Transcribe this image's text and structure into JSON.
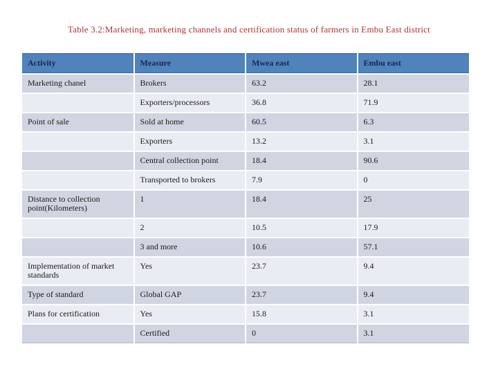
{
  "page": {
    "title": "Table 3.2:Marketing, marketing channels and certification status of farmers in Embu East district"
  },
  "colors": {
    "title_text": "#a83434",
    "header_bg": "#5082bb",
    "header_text": "#16284a",
    "row_band_dark": "#d0d5e1",
    "row_band_light": "#e9edf3",
    "cell_text": "#1a1a1a",
    "grid_line": "#ffffff",
    "table_bottom_border": "#aeb9cb"
  },
  "table": {
    "columns": [
      "Activity",
      "Measure",
      "Mwea east",
      "Embu east"
    ],
    "rows": [
      {
        "activity": "Marketing chanel",
        "measure": "Brokers",
        "mwea_east": "63.2",
        "embu_east": "28.1"
      },
      {
        "activity": "",
        "measure": "Exporters/processors",
        "mwea_east": "36.8",
        "embu_east": "71.9"
      },
      {
        "activity": "Point of sale",
        "measure": "Sold at home",
        "mwea_east": "60.5",
        "embu_east": "6.3"
      },
      {
        "activity": "",
        "measure": "Exporters",
        "mwea_east": "13.2",
        "embu_east": "3.1"
      },
      {
        "activity": "",
        "measure": "Central collection point",
        "mwea_east": "18.4",
        "embu_east": "90.6"
      },
      {
        "activity": "",
        "measure": "Transported to brokers",
        "mwea_east": "7.9",
        "embu_east": "0"
      },
      {
        "activity": "Distance to collection point(Kilometers)",
        "measure": "1",
        "mwea_east": "18.4",
        "embu_east": "25"
      },
      {
        "activity": "",
        "measure": "2",
        "mwea_east": "10.5",
        "embu_east": "17.9"
      },
      {
        "activity": "",
        "measure": "3 and more",
        "mwea_east": "10.6",
        "embu_east": "57.1"
      },
      {
        "activity": "Implementation of market standards",
        "measure": "Yes",
        "mwea_east": "23.7",
        "embu_east": "9.4"
      },
      {
        "activity": "Type of standard",
        "measure": "Global GAP",
        "mwea_east": "23.7",
        "embu_east": "9.4"
      },
      {
        "activity": "Plans for certification",
        "measure": "Yes",
        "mwea_east": "15.8",
        "embu_east": "3.1"
      },
      {
        "activity": "",
        "measure": "Certified",
        "mwea_east": "0",
        "embu_east": "3.1"
      }
    ]
  }
}
